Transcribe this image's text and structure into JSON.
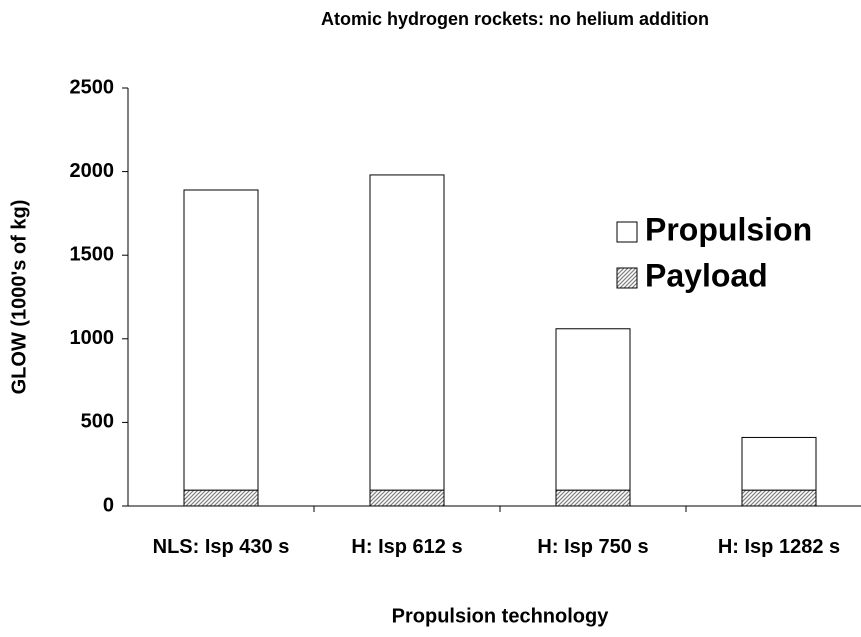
{
  "chart_data": {
    "type": "stacked_bar",
    "title": "Atomic hydrogen rockets: no helium addition",
    "x_label": "Propulsion technology",
    "y_label": "GLOW (1000's of kg)",
    "categories": [
      "NLS: Isp 430 s",
      "H: Isp 612 s",
      "H: Isp 750 s",
      "H: Isp 1282 s"
    ],
    "series": [
      {
        "name": "Payload",
        "color": "#808080",
        "values": [
          95,
          95,
          95,
          95
        ]
      },
      {
        "name": "Propulsion",
        "color": "#ffffff",
        "values": [
          1795,
          1885,
          965,
          315
        ]
      }
    ],
    "ylim": [
      0,
      2500
    ],
    "yticks": [
      0,
      500,
      1000,
      1500,
      2000,
      2500
    ],
    "legend": "right"
  }
}
